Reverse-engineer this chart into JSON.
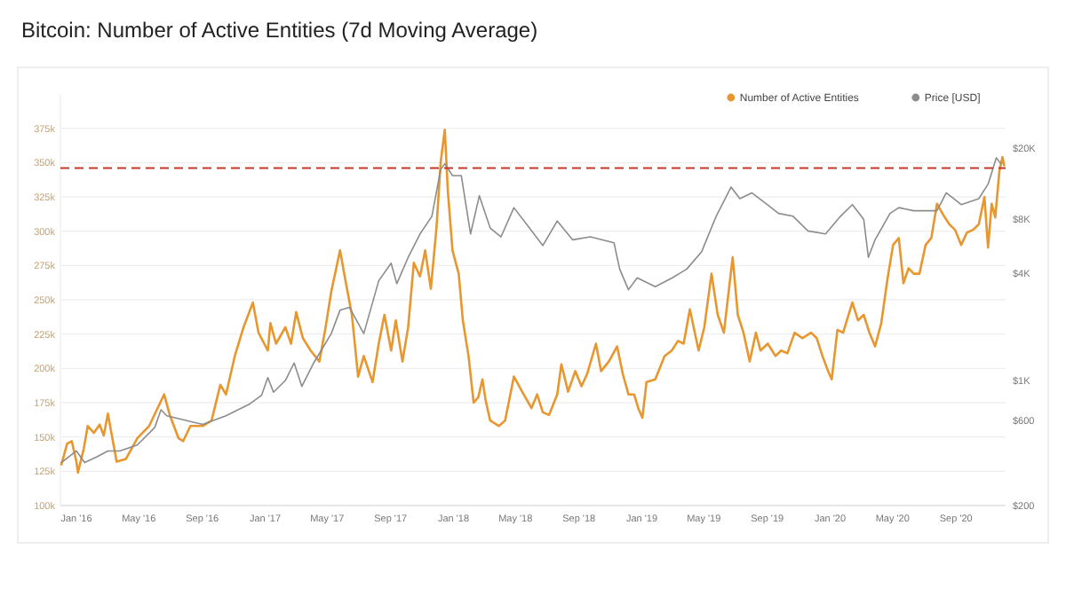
{
  "chart_data": {
    "type": "line",
    "title": "Bitcoin: Number of Active Entities (7d Moving Average)",
    "xlim": [
      "2015-12-01",
      "2020-12-06"
    ],
    "xticks": [
      {
        "value": "2016-01-01",
        "label": "Jan '16"
      },
      {
        "value": "2016-05-01",
        "label": "May '16"
      },
      {
        "value": "2016-09-01",
        "label": "Sep '16"
      },
      {
        "value": "2017-01-01",
        "label": "Jan '17"
      },
      {
        "value": "2017-05-01",
        "label": "May '17"
      },
      {
        "value": "2017-09-01",
        "label": "Sep '17"
      },
      {
        "value": "2018-01-01",
        "label": "Jan '18"
      },
      {
        "value": "2018-05-01",
        "label": "May '18"
      },
      {
        "value": "2018-09-01",
        "label": "Sep '18"
      },
      {
        "value": "2019-01-01",
        "label": "Jan '19"
      },
      {
        "value": "2019-05-01",
        "label": "May '19"
      },
      {
        "value": "2019-09-01",
        "label": "Sep '19"
      },
      {
        "value": "2020-01-01",
        "label": "Jan '20"
      },
      {
        "value": "2020-05-01",
        "label": "May '20"
      },
      {
        "value": "2020-09-01",
        "label": "Sep '20"
      }
    ],
    "ylim": [
      100000,
      400000
    ],
    "yticks": [
      {
        "value": 100000,
        "label": "100k"
      },
      {
        "value": 125000,
        "label": "125k"
      },
      {
        "value": 150000,
        "label": "150k"
      },
      {
        "value": 175000,
        "label": "175k"
      },
      {
        "value": 200000,
        "label": "200k"
      },
      {
        "value": 225000,
        "label": "225k"
      },
      {
        "value": 250000,
        "label": "250k"
      },
      {
        "value": 275000,
        "label": "275k"
      },
      {
        "value": 300000,
        "label": "300k"
      },
      {
        "value": 325000,
        "label": "325k"
      },
      {
        "value": 350000,
        "label": "350k"
      },
      {
        "value": 375000,
        "label": "375k"
      }
    ],
    "y2lim": [
      200,
      40000
    ],
    "y2ticks": [
      {
        "value": 200,
        "label": "$200"
      },
      {
        "value": 600,
        "label": "$600"
      },
      {
        "value": 1000,
        "label": "$1K"
      },
      {
        "value": 4000,
        "label": "$4K"
      },
      {
        "value": 8000,
        "label": "$8K"
      },
      {
        "value": 20000,
        "label": "$20K"
      }
    ],
    "log": "y2",
    "grid": "y",
    "legend": "top right",
    "marker": "none",
    "line_style": "solid",
    "ref_lines": [
      {
        "axis": "y",
        "value": 346000,
        "color": "#c0392b",
        "line_style": "dashed"
      }
    ],
    "series": [
      {
        "name": "Number of Active Entities",
        "color": "#e8962e",
        "x": [
          "2015-12-03",
          "2015-12-14",
          "2015-12-23",
          "2016-01-01",
          "2016-01-04",
          "2016-01-15",
          "2016-01-23",
          "2016-02-04",
          "2016-02-15",
          "2016-02-23",
          "2016-03-02",
          "2016-03-19",
          "2016-04-06",
          "2016-04-28",
          "2016-05-21",
          "2016-06-19",
          "2016-06-30",
          "2016-07-17",
          "2016-07-26",
          "2016-08-09",
          "2016-09-02",
          "2016-09-19",
          "2016-10-06",
          "2016-10-17",
          "2016-11-03",
          "2016-11-20",
          "2016-12-08",
          "2016-12-19",
          "2017-01-06",
          "2017-01-11",
          "2017-01-22",
          "2017-02-09",
          "2017-02-20",
          "2017-03-02",
          "2017-03-15",
          "2017-03-30",
          "2017-04-16",
          "2017-04-28",
          "2017-05-09",
          "2017-05-26",
          "2017-06-05",
          "2017-06-18",
          "2017-06-30",
          "2017-07-11",
          "2017-07-28",
          "2017-08-09",
          "2017-08-20",
          "2017-09-02",
          "2017-09-11",
          "2017-09-24",
          "2017-10-05",
          "2017-10-16",
          "2017-10-28",
          "2017-11-07",
          "2017-11-18",
          "2017-11-29",
          "2017-12-07",
          "2017-12-15",
          "2017-12-21",
          "2017-12-30",
          "2018-01-11",
          "2018-01-19",
          "2018-01-30",
          "2018-02-09",
          "2018-02-18",
          "2018-02-26",
          "2018-03-04",
          "2018-03-13",
          "2018-03-30",
          "2018-04-11",
          "2018-04-28",
          "2018-05-14",
          "2018-06-01",
          "2018-06-12",
          "2018-06-23",
          "2018-07-05",
          "2018-07-21",
          "2018-07-29",
          "2018-08-11",
          "2018-08-25",
          "2018-09-06",
          "2018-09-17",
          "2018-10-04",
          "2018-10-14",
          "2018-10-29",
          "2018-11-14",
          "2018-11-25",
          "2018-12-06",
          "2018-12-17",
          "2018-12-25",
          "2019-01-02",
          "2019-01-10",
          "2019-01-27",
          "2019-02-14",
          "2019-02-28",
          "2019-03-12",
          "2019-03-23",
          "2019-04-04",
          "2019-04-21",
          "2019-05-02",
          "2019-05-16",
          "2019-05-28",
          "2019-06-09",
          "2019-06-17",
          "2019-06-26",
          "2019-07-06",
          "2019-07-17",
          "2019-07-29",
          "2019-08-10",
          "2019-08-19",
          "2019-09-02",
          "2019-09-17",
          "2019-09-28",
          "2019-10-10",
          "2019-10-24",
          "2019-11-08",
          "2019-11-25",
          "2019-12-06",
          "2019-12-17",
          "2019-12-28",
          "2020-01-04",
          "2020-01-15",
          "2020-01-26",
          "2020-02-13",
          "2020-02-24",
          "2020-03-06",
          "2020-03-17",
          "2020-03-28",
          "2020-04-09",
          "2020-04-21",
          "2020-05-02",
          "2020-05-13",
          "2020-05-22",
          "2020-06-01",
          "2020-06-11",
          "2020-06-22",
          "2020-07-04",
          "2020-07-15",
          "2020-07-26",
          "2020-08-07",
          "2020-08-19",
          "2020-08-30",
          "2020-09-11",
          "2020-09-22",
          "2020-10-04",
          "2020-10-15",
          "2020-10-26",
          "2020-11-02",
          "2020-11-09",
          "2020-11-16",
          "2020-11-24",
          "2020-11-30",
          "2020-12-03"
        ],
        "values": [
          130000,
          145000,
          147000,
          132000,
          124000,
          141000,
          158000,
          153000,
          159000,
          151000,
          167000,
          132000,
          134000,
          149000,
          158000,
          181000,
          166000,
          149000,
          147000,
          158000,
          158000,
          162000,
          188000,
          181000,
          209000,
          230000,
          248000,
          226000,
          213000,
          233000,
          218000,
          230000,
          218000,
          241000,
          222000,
          213000,
          205000,
          230000,
          256000,
          286000,
          265000,
          239000,
          194000,
          209000,
          190000,
          218000,
          239000,
          213000,
          235000,
          205000,
          230000,
          277000,
          267000,
          286000,
          258000,
          303000,
          350000,
          374000,
          329000,
          286000,
          269000,
          235000,
          209000,
          175000,
          179000,
          192000,
          177000,
          162000,
          158000,
          162000,
          194000,
          183000,
          171000,
          181000,
          168000,
          166000,
          181000,
          203000,
          183000,
          198000,
          187000,
          196000,
          218000,
          198000,
          205000,
          216000,
          196000,
          181000,
          181000,
          171000,
          164000,
          190000,
          192000,
          209000,
          213000,
          220000,
          218000,
          243000,
          213000,
          230000,
          269000,
          239000,
          226000,
          252000,
          281000,
          239000,
          226000,
          205000,
          226000,
          213000,
          218000,
          209000,
          213000,
          211000,
          226000,
          222000,
          226000,
          222000,
          209000,
          198000,
          192000,
          228000,
          226000,
          248000,
          235000,
          239000,
          226000,
          216000,
          233000,
          265000,
          290000,
          295000,
          262000,
          273000,
          269000,
          269000,
          290000,
          295000,
          320000,
          312000,
          305000,
          301000,
          290000,
          299000,
          301000,
          305000,
          325000,
          288000,
          320000,
          310000,
          344000,
          354000,
          348000
        ]
      },
      {
        "name": "Price [USD]",
        "color": "#8c8c8c",
        "axis": "y2",
        "x": [
          "2015-12-03",
          "2016-01-01",
          "2016-01-17",
          "2016-02-10",
          "2016-03-02",
          "2016-03-25",
          "2016-04-28",
          "2016-06-01",
          "2016-06-13",
          "2016-06-24",
          "2016-07-17",
          "2016-08-09",
          "2016-09-02",
          "2016-10-17",
          "2016-12-02",
          "2016-12-25",
          "2017-01-06",
          "2017-01-17",
          "2017-02-09",
          "2017-02-26",
          "2017-03-13",
          "2017-04-05",
          "2017-05-09",
          "2017-05-26",
          "2017-06-13",
          "2017-07-11",
          "2017-08-09",
          "2017-09-02",
          "2017-09-13",
          "2017-10-05",
          "2017-10-28",
          "2017-11-20",
          "2017-12-07",
          "2017-12-15",
          "2017-12-30",
          "2018-01-16",
          "2018-02-03",
          "2018-02-20",
          "2018-03-13",
          "2018-04-03",
          "2018-04-28",
          "2018-06-23",
          "2018-07-21",
          "2018-08-20",
          "2018-09-23",
          "2018-11-08",
          "2018-11-19",
          "2018-12-06",
          "2018-12-23",
          "2019-01-27",
          "2019-03-01",
          "2019-03-29",
          "2019-04-27",
          "2019-05-25",
          "2019-06-23",
          "2019-07-10",
          "2019-08-02",
          "2019-09-01",
          "2019-09-23",
          "2019-10-21",
          "2019-11-19",
          "2019-12-23",
          "2020-01-21",
          "2020-02-13",
          "2020-03-06",
          "2020-03-15",
          "2020-03-28",
          "2020-04-26",
          "2020-05-13",
          "2020-06-11",
          "2020-07-26",
          "2020-08-13",
          "2020-09-11",
          "2020-10-15",
          "2020-11-02",
          "2020-11-18",
          "2020-11-27"
        ],
        "values": [
          348,
          404,
          348,
          375,
          404,
          404,
          436,
          547,
          686,
          636,
          612,
          590,
          568,
          636,
          740,
          828,
          1038,
          860,
          1000,
          1254,
          927,
          1254,
          1830,
          2476,
          2570,
          1830,
          3610,
          4530,
          3480,
          4880,
          6600,
          8290,
          15130,
          16300,
          14000,
          14000,
          6600,
          10800,
          7130,
          6360,
          9260,
          5690,
          7800,
          6120,
          6360,
          5890,
          4200,
          3220,
          3750,
          3350,
          3750,
          4200,
          5260,
          8290,
          12070,
          10400,
          11200,
          9630,
          8600,
          8290,
          6860,
          6600,
          8290,
          9630,
          7970,
          4880,
          6120,
          8600,
          9260,
          8900,
          8900,
          11200,
          9630,
          10400,
          12530,
          17600,
          16300
        ]
      }
    ]
  }
}
